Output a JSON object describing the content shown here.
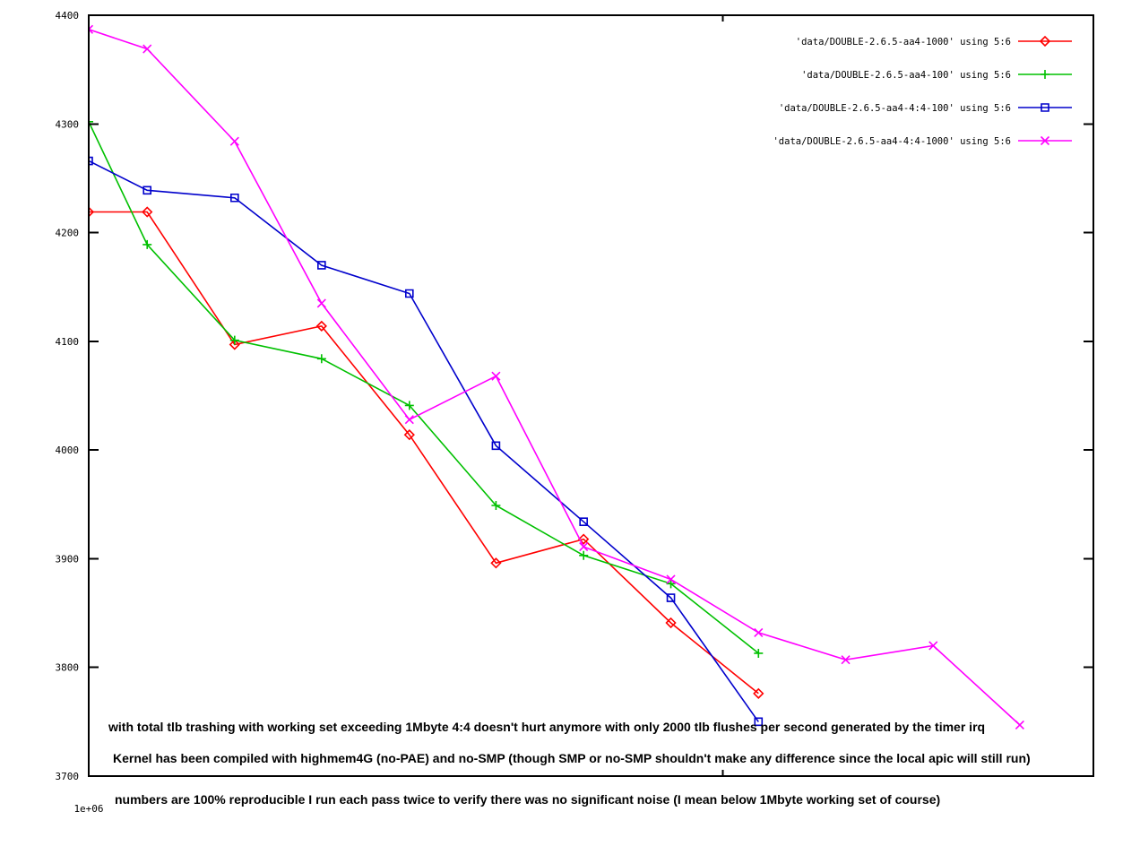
{
  "chart_data": {
    "type": "line",
    "title": "",
    "xlabel": "",
    "ylabel": "",
    "grid": false,
    "legend_position": "top-right",
    "x_axis": {
      "scale": "log",
      "min": 1000000,
      "max": 3000000,
      "major_tick_value": 1000000,
      "major_tick_label": "1e+06",
      "minor_tick_value": 2000000
    },
    "y_axis": {
      "min": 3700,
      "max": 4400,
      "tick_step": 100,
      "ticks": [
        4400,
        4300,
        4200,
        4100,
        4000,
        3900,
        3800,
        3700
      ]
    },
    "x": [
      1000000,
      1066000,
      1173000,
      1290000,
      1420000,
      1561000,
      1718000,
      1890000,
      2080000,
      2288000,
      2518000,
      2768000
    ],
    "series": [
      {
        "name": "'data/DOUBLE-2.6.5-aa4-1000' using 5:6",
        "color": "#ff0000",
        "marker": "diamond",
        "values": [
          4219,
          4219,
          4097,
          4114,
          4014,
          3896,
          3918,
          3841,
          3776
        ]
      },
      {
        "name": "'data/DOUBLE-2.6.5-aa4-100' using 5:6",
        "color": "#00c000",
        "marker": "plus",
        "values": [
          4302,
          4189,
          4101,
          4084,
          4041,
          3949,
          3903,
          3877,
          3813
        ]
      },
      {
        "name": "'data/DOUBLE-2.6.5-aa4-4:4-100' using 5:6",
        "color": "#0000cc",
        "marker": "square",
        "values": [
          4266,
          4239,
          4232,
          4170,
          4144,
          4004,
          3934,
          3864,
          3750
        ]
      },
      {
        "name": "'data/DOUBLE-2.6.5-aa4-4:4-1000' using 5:6",
        "color": "#ff00ff",
        "marker": "x",
        "values": [
          4387,
          4369,
          4284,
          4135,
          4028,
          4068,
          3911,
          3881,
          3832,
          3807,
          3820,
          3747
        ]
      }
    ],
    "annotations": [
      "with total tlb trashing with working set exceeding 1Mbyte 4:4 doesn't hurt anymore with only 2000 tlb flushes per second generated by the timer irq",
      "Kernel has been compiled with highmem4G (no-PAE) and no-SMP (though SMP or no-SMP shouldn't make any difference since the local apic will still run)",
      "numbers are 100% reproducible I run each pass twice to verify there was no significant noise (I mean below 1Mbyte working set of course)"
    ]
  }
}
